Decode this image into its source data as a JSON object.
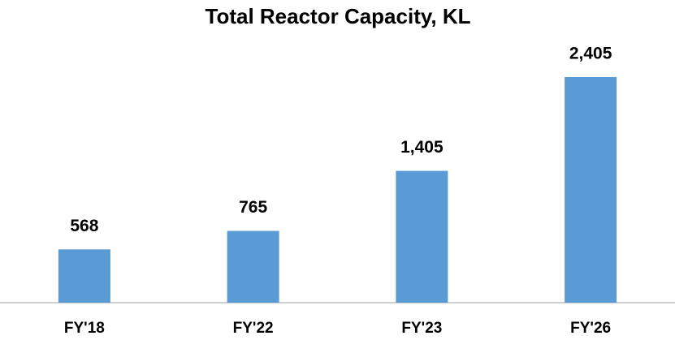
{
  "chart_data": {
    "type": "bar",
    "title": "Total Reactor Capacity, KL",
    "categories": [
      "FY'18",
      "FY'22",
      "FY'23",
      "FY'26"
    ],
    "values": [
      568,
      765,
      1405,
      2405
    ],
    "value_labels": [
      "568",
      "765",
      "1,405",
      "2,405"
    ],
    "color": "#5b9bd5"
  }
}
